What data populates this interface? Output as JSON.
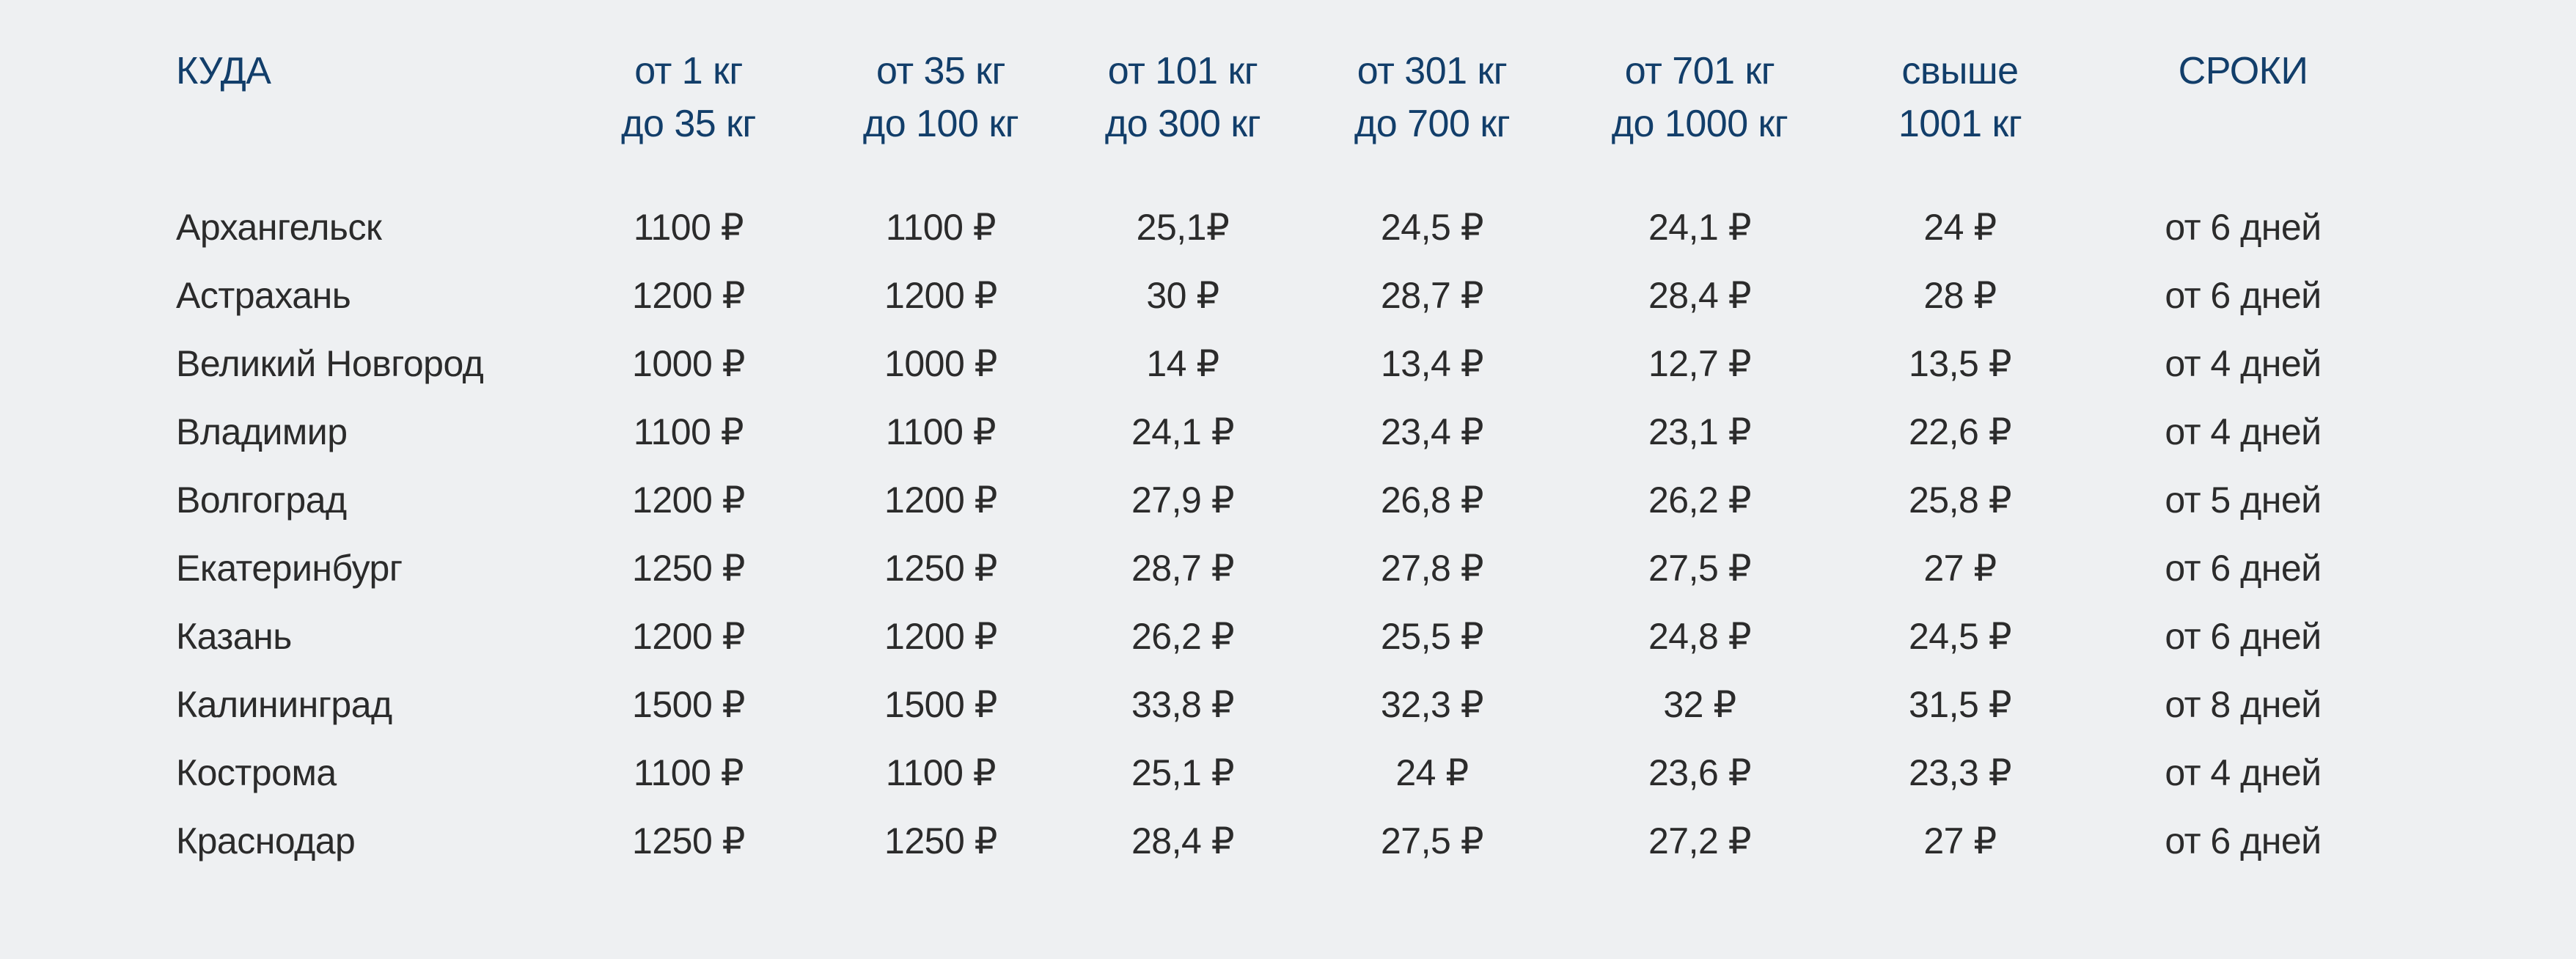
{
  "page": {
    "background_color": "#eef0f2",
    "header_text_color": "#123e6a",
    "body_text_color": "#2b2b2b",
    "currency_symbol": "₽"
  },
  "table": {
    "columns": [
      {
        "line1": "КУДА",
        "line2": ""
      },
      {
        "line1": "от 1 кг",
        "line2": "до 35 кг"
      },
      {
        "line1": "от 35 кг",
        "line2": "до 100 кг"
      },
      {
        "line1": "от 101 кг",
        "line2": "до 300 кг"
      },
      {
        "line1": "от 301 кг",
        "line2": "до 700 кг"
      },
      {
        "line1": "от 701 кг",
        "line2": "до 1000 кг"
      },
      {
        "line1": "свыше",
        "line2": "1001 кг"
      },
      {
        "line1": "СРОКИ",
        "line2": ""
      }
    ],
    "rows": [
      {
        "city": "Архангельск",
        "rates": [
          "1100 ₽",
          "1100 ₽",
          "25,1₽",
          "24,5 ₽",
          "24,1 ₽",
          "24 ₽"
        ],
        "term": "от 6 дней"
      },
      {
        "city": "Астрахань",
        "rates": [
          "1200 ₽",
          "1200 ₽",
          "30 ₽",
          "28,7 ₽",
          "28,4 ₽",
          "28 ₽"
        ],
        "term": "от 6 дней"
      },
      {
        "city": "Великий Новгород",
        "rates": [
          "1000 ₽",
          "1000 ₽",
          "14 ₽",
          "13,4 ₽",
          "12,7 ₽",
          "13,5 ₽"
        ],
        "term": "от 4 дней"
      },
      {
        "city": "Владимир",
        "rates": [
          "1100 ₽",
          "1100 ₽",
          "24,1 ₽",
          "23,4 ₽",
          "23,1 ₽",
          "22,6 ₽"
        ],
        "term": "от 4 дней"
      },
      {
        "city": "Волгоград",
        "rates": [
          "1200 ₽",
          "1200 ₽",
          "27,9 ₽",
          "26,8 ₽",
          "26,2 ₽",
          "25,8 ₽"
        ],
        "term": "от 5 дней"
      },
      {
        "city": "Екатеринбург",
        "rates": [
          "1250 ₽",
          "1250 ₽",
          "28,7 ₽",
          "27,8 ₽",
          "27,5 ₽",
          "27 ₽"
        ],
        "term": "от 6 дней"
      },
      {
        "city": "Казань",
        "rates": [
          "1200 ₽",
          "1200 ₽",
          "26,2 ₽",
          "25,5 ₽",
          "24,8 ₽",
          "24,5 ₽"
        ],
        "term": "от 6 дней"
      },
      {
        "city": "Калининград",
        "rates": [
          "1500 ₽",
          "1500 ₽",
          "33,8 ₽",
          "32,3 ₽",
          "32 ₽",
          "31,5 ₽"
        ],
        "term": "от 8 дней"
      },
      {
        "city": "Кострома",
        "rates": [
          "1100 ₽",
          "1100 ₽",
          "25,1 ₽",
          "24 ₽",
          "23,6 ₽",
          "23,3 ₽"
        ],
        "term": "от 4 дней"
      },
      {
        "city": "Краснодар",
        "rates": [
          "1250 ₽",
          "1250 ₽",
          "28,4 ₽",
          "27,5 ₽",
          "27,2 ₽",
          "27 ₽"
        ],
        "term": "от 6 дней"
      }
    ]
  }
}
